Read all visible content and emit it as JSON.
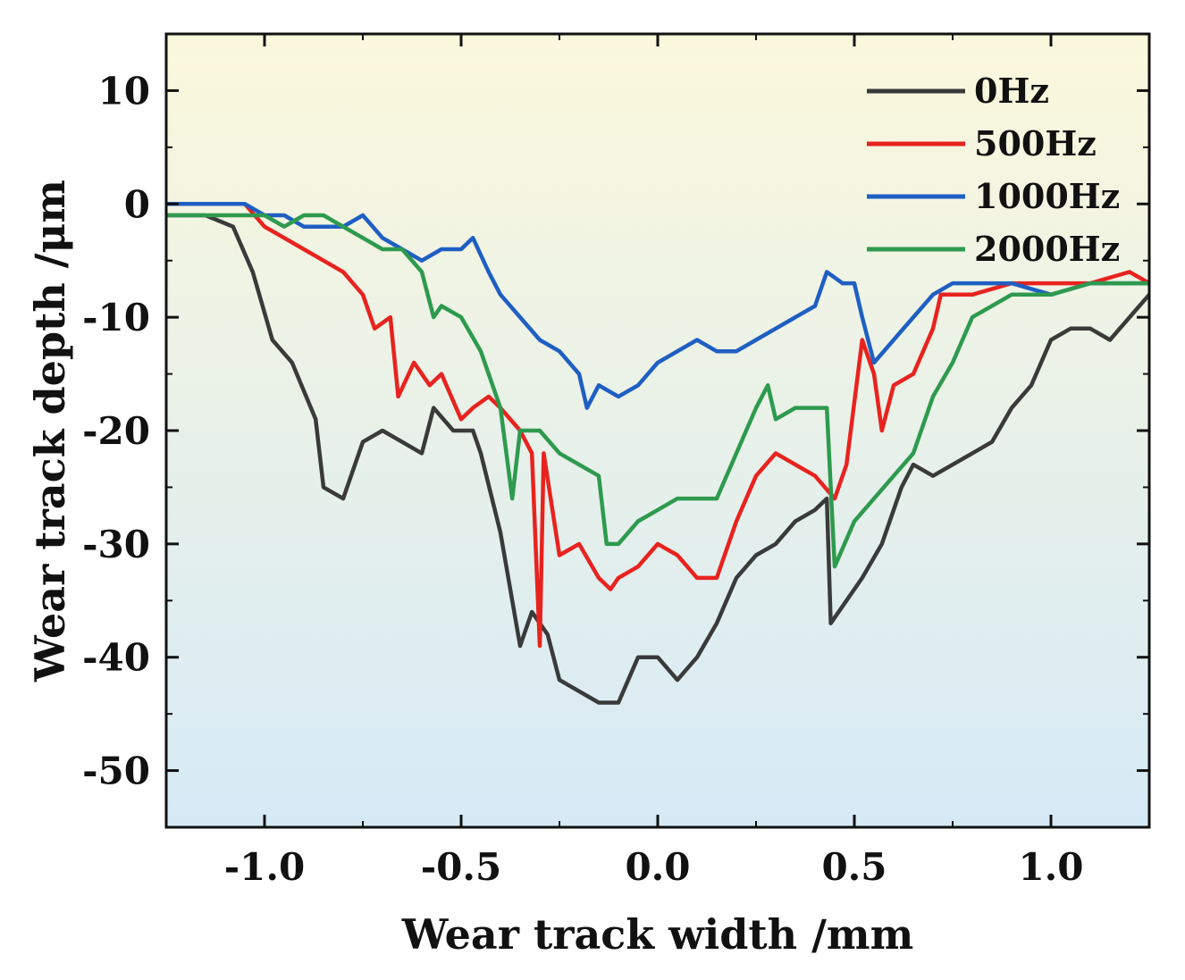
{
  "chart_data": {
    "type": "line",
    "title": "",
    "xlabel": "Wear track width /mm",
    "ylabel": "Wear track depth /μm",
    "xlim": [
      -1.25,
      1.25
    ],
    "ylim": [
      -55,
      15
    ],
    "xticks": [
      -1.0,
      -0.5,
      0.0,
      0.5,
      1.0
    ],
    "xtick_labels": [
      "-1.0",
      "-0.5",
      "0.0",
      "0.5",
      "1.0"
    ],
    "yticks": [
      10,
      0,
      -10,
      -20,
      -30,
      -40,
      -50
    ],
    "ytick_labels": [
      "10",
      "0",
      "-10",
      "-20",
      "-30",
      "-40",
      "-50"
    ],
    "grid": false,
    "legend_position": "top-right",
    "background_gradient": [
      "#fbf8dc",
      "#d6eaf6"
    ],
    "series": [
      {
        "name": "0Hz",
        "color": "#3a3a3a",
        "x": [
          -1.25,
          -1.15,
          -1.08,
          -1.03,
          -0.98,
          -0.93,
          -0.87,
          -0.85,
          -0.8,
          -0.75,
          -0.7,
          -0.65,
          -0.6,
          -0.57,
          -0.52,
          -0.47,
          -0.45,
          -0.4,
          -0.37,
          -0.35,
          -0.32,
          -0.28,
          -0.25,
          -0.2,
          -0.15,
          -0.1,
          -0.05,
          0.0,
          0.05,
          0.1,
          0.15,
          0.2,
          0.25,
          0.3,
          0.35,
          0.4,
          0.43,
          0.44,
          0.48,
          0.52,
          0.57,
          0.62,
          0.65,
          0.7,
          0.75,
          0.8,
          0.85,
          0.9,
          0.95,
          1.0,
          1.05,
          1.1,
          1.15,
          1.2,
          1.25
        ],
        "y": [
          -1,
          -1,
          -2,
          -6,
          -12,
          -14,
          -19,
          -25,
          -26,
          -21,
          -20,
          -21,
          -22,
          -18,
          -20,
          -20,
          -22,
          -29,
          -35,
          -39,
          -36,
          -38,
          -42,
          -43,
          -44,
          -44,
          -40,
          -40,
          -42,
          -40,
          -37,
          -33,
          -31,
          -30,
          -28,
          -27,
          -26,
          -37,
          -35,
          -33,
          -30,
          -25,
          -23,
          -24,
          -23,
          -22,
          -21,
          -18,
          -16,
          -12,
          -11,
          -11,
          -12,
          -10,
          -8
        ]
      },
      {
        "name": "500Hz",
        "color": "#e8231f",
        "x": [
          -1.25,
          -1.15,
          -1.05,
          -1.0,
          -0.95,
          -0.9,
          -0.85,
          -0.8,
          -0.75,
          -0.72,
          -0.68,
          -0.66,
          -0.62,
          -0.58,
          -0.55,
          -0.5,
          -0.47,
          -0.43,
          -0.4,
          -0.35,
          -0.32,
          -0.3,
          -0.29,
          -0.25,
          -0.2,
          -0.15,
          -0.12,
          -0.1,
          -0.05,
          0.0,
          0.05,
          0.1,
          0.15,
          0.2,
          0.25,
          0.3,
          0.35,
          0.4,
          0.45,
          0.48,
          0.52,
          0.55,
          0.57,
          0.6,
          0.65,
          0.7,
          0.72,
          0.8,
          0.9,
          1.0,
          1.1,
          1.2,
          1.25
        ],
        "y": [
          0,
          0,
          0,
          -2,
          -3,
          -4,
          -5,
          -6,
          -8,
          -11,
          -10,
          -17,
          -14,
          -16,
          -15,
          -19,
          -18,
          -17,
          -18,
          -20,
          -22,
          -39,
          -22,
          -31,
          -30,
          -33,
          -34,
          -33,
          -32,
          -30,
          -31,
          -33,
          -33,
          -28,
          -24,
          -22,
          -23,
          -24,
          -26,
          -23,
          -12,
          -15,
          -20,
          -16,
          -15,
          -11,
          -8,
          -8,
          -7,
          -7,
          -7,
          -6,
          -7
        ]
      },
      {
        "name": "1000Hz",
        "color": "#1f5fc3",
        "x": [
          -1.25,
          -1.15,
          -1.05,
          -1.0,
          -0.95,
          -0.9,
          -0.85,
          -0.8,
          -0.75,
          -0.7,
          -0.65,
          -0.6,
          -0.55,
          -0.5,
          -0.47,
          -0.43,
          -0.4,
          -0.35,
          -0.3,
          -0.25,
          -0.2,
          -0.18,
          -0.15,
          -0.1,
          -0.05,
          0.0,
          0.05,
          0.1,
          0.15,
          0.2,
          0.25,
          0.3,
          0.35,
          0.4,
          0.43,
          0.47,
          0.5,
          0.52,
          0.55,
          0.6,
          0.65,
          0.7,
          0.75,
          0.8,
          0.9,
          1.0,
          1.1,
          1.2,
          1.25
        ],
        "y": [
          0,
          0,
          0,
          -1,
          -1,
          -2,
          -2,
          -2,
          -1,
          -3,
          -4,
          -5,
          -4,
          -4,
          -3,
          -6,
          -8,
          -10,
          -12,
          -13,
          -15,
          -18,
          -16,
          -17,
          -16,
          -14,
          -13,
          -12,
          -13,
          -13,
          -12,
          -11,
          -10,
          -9,
          -6,
          -7,
          -7,
          -10,
          -14,
          -12,
          -10,
          -8,
          -7,
          -7,
          -7,
          -8,
          -7,
          -7,
          -7
        ]
      },
      {
        "name": "2000Hz",
        "color": "#2e9a4e",
        "x": [
          -1.25,
          -1.15,
          -1.05,
          -1.0,
          -0.95,
          -0.9,
          -0.85,
          -0.8,
          -0.75,
          -0.7,
          -0.65,
          -0.6,
          -0.57,
          -0.55,
          -0.5,
          -0.45,
          -0.4,
          -0.37,
          -0.35,
          -0.3,
          -0.25,
          -0.2,
          -0.15,
          -0.13,
          -0.1,
          -0.05,
          0.0,
          0.05,
          0.1,
          0.15,
          0.2,
          0.25,
          0.28,
          0.3,
          0.35,
          0.4,
          0.43,
          0.45,
          0.5,
          0.55,
          0.6,
          0.65,
          0.7,
          0.75,
          0.8,
          0.9,
          1.0,
          1.1,
          1.2,
          1.25
        ],
        "y": [
          -1,
          -1,
          -1,
          -1,
          -2,
          -1,
          -1,
          -2,
          -3,
          -4,
          -4,
          -6,
          -10,
          -9,
          -10,
          -13,
          -18,
          -26,
          -20,
          -20,
          -22,
          -23,
          -24,
          -30,
          -30,
          -28,
          -27,
          -26,
          -26,
          -26,
          -22,
          -18,
          -16,
          -19,
          -18,
          -18,
          -18,
          -32,
          -28,
          -26,
          -24,
          -22,
          -17,
          -14,
          -10,
          -8,
          -8,
          -7,
          -7,
          -7
        ]
      }
    ]
  }
}
